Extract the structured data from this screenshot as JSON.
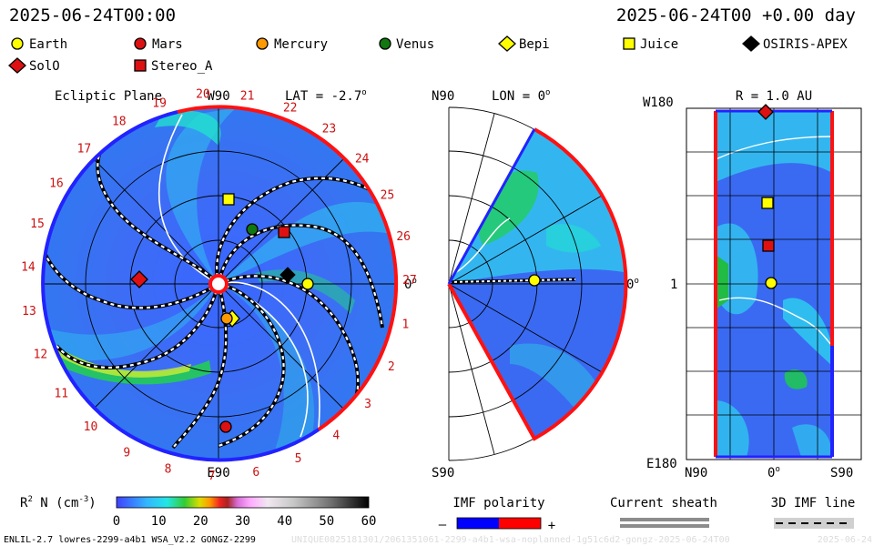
{
  "header": {
    "left_time": "2025-06-24T00:00",
    "right_time": "2025-06-24T00 +0.00 day"
  },
  "legend": [
    {
      "label": "Earth",
      "shape": "circle",
      "color": "#ffff00"
    },
    {
      "label": "Mars",
      "shape": "circle",
      "color": "#dd1111"
    },
    {
      "label": "Mercury",
      "shape": "circle",
      "color": "#ff9900"
    },
    {
      "label": "Venus",
      "shape": "circle",
      "color": "#117711"
    },
    {
      "label": "Bepi",
      "shape": "diamond",
      "color": "#ffff00"
    },
    {
      "label": "Juice",
      "shape": "square",
      "color": "#ffff00"
    },
    {
      "label": "OSIRIS-APEX",
      "shape": "diamond",
      "color": "#000000"
    },
    {
      "label": "SolO",
      "shape": "diamond",
      "color": "#dd1111"
    },
    {
      "label": "Stereo_A",
      "shape": "square",
      "color": "#dd1111"
    }
  ],
  "panels": {
    "ecliptic": {
      "title": "Ecliptic Plane",
      "lat_label": "LAT = -2.7",
      "lat_deg": "o",
      "top_label": "W90",
      "bottom_label": "E90",
      "right_label": "0",
      "right_deg": "o",
      "carrington_ticks": [
        "1",
        "2",
        "3",
        "4",
        "5",
        "6",
        "7",
        "8",
        "9",
        "10",
        "11",
        "12",
        "13",
        "14",
        "15",
        "16",
        "17",
        "18",
        "19",
        "20",
        "21",
        "22",
        "23",
        "24",
        "25",
        "26",
        "27"
      ]
    },
    "meridional": {
      "top_label": "N90",
      "bottom_label": "S90",
      "lon_label": "LON = 0",
      "lon_deg": "o",
      "right_label": "0",
      "right_deg": "o"
    },
    "radial": {
      "title": "R = 1.0 AU",
      "top_left": "W180",
      "mid_left": "1",
      "bottom_left": "E180",
      "x_left": "N90",
      "x_mid": "0",
      "x_mid_deg": "o",
      "x_right": "S90"
    }
  },
  "colorbar": {
    "label_main": "R",
    "label_sup": "2",
    "label_rest": " N (cm",
    "label_exp": "-3",
    "label_end": ")",
    "ticks": [
      "0",
      "10",
      "20",
      "30",
      "40",
      "50",
      "60"
    ],
    "colors": [
      "#4040ff",
      "#3a7bff",
      "#33b6ff",
      "#22e6e6",
      "#22d48a",
      "#33cc33",
      "#88dd22",
      "#dddd00",
      "#ff9900",
      "#ee2222",
      "#aa2222",
      "#d86fd8",
      "#ffaaff",
      "#f0d0f0",
      "#d8d8d8",
      "#b0b0b0",
      "#888888",
      "#555555",
      "#222222",
      "#000000"
    ]
  },
  "imf_polarity": {
    "title": "IMF polarity",
    "minus": "–",
    "plus": "+",
    "neg_color": "#0000ff",
    "pos_color": "#ff0000"
  },
  "current_sheath": {
    "title": "Current sheath"
  },
  "imf_line": {
    "title": "3D IMF line"
  },
  "footer": {
    "model": "ENLIL-2.7 lowres-2299-a4b1 WSA_V2.2 GONGZ-2299",
    "run_id": "UNIQUE0825181301/2061351061-2299-a4b1-wsa-noplanned-1g51c6d2-gongz-2025-06-24T00",
    "stamp": "2025-06-24"
  }
}
